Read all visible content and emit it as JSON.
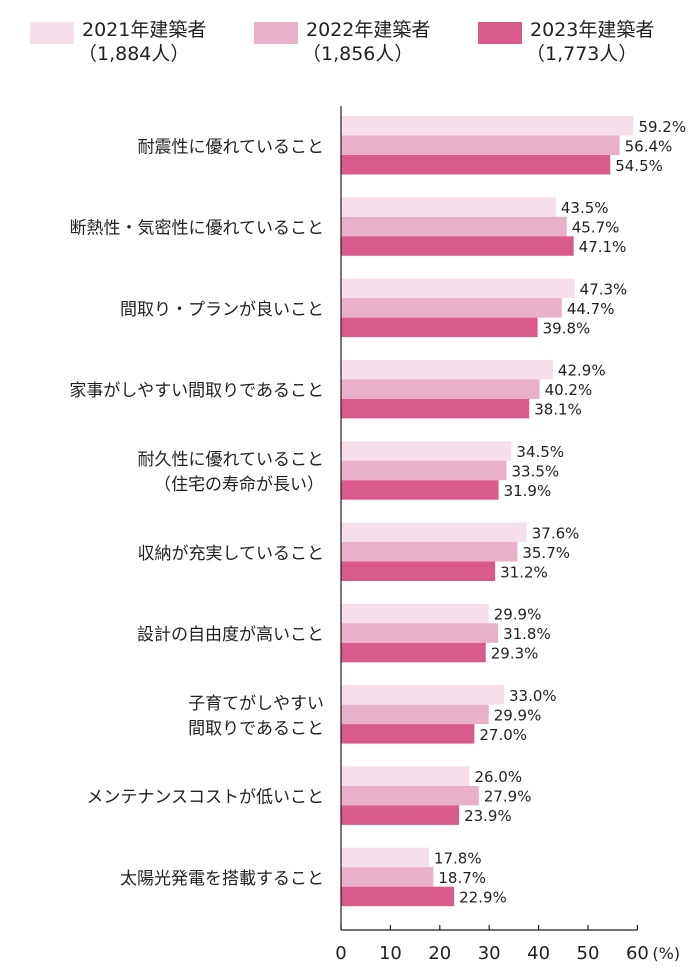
{
  "legend": [
    {
      "label": "2021年建築者",
      "count": "（1,884人）",
      "color": "#f6dfeb"
    },
    {
      "label": "2022年建築者",
      "count": "（1,856人）",
      "color": "#e8b1c9"
    },
    {
      "label": "2023年建築者",
      "count": "（1,773人）",
      "color": "#d95b8c"
    }
  ],
  "chart_data": {
    "type": "bar",
    "orientation": "horizontal",
    "categories": [
      [
        "耐震性に優れていること"
      ],
      [
        "断熱性・気密性に優れていること"
      ],
      [
        "間取り・プランが良いこと"
      ],
      [
        "家事がしやすい間取りであること"
      ],
      [
        "耐久性に優れていること",
        "（住宅の寿命が長い）"
      ],
      [
        "収納が充実していること"
      ],
      [
        "設計の自由度が高いこと"
      ],
      [
        "子育てがしやすい",
        "間取りであること"
      ],
      [
        "メンテナンスコストが低いこと"
      ],
      [
        "太陽光発電を搭載すること"
      ]
    ],
    "series": [
      {
        "name": "2021年建築者（1,884人）",
        "values": [
          59.2,
          43.5,
          47.3,
          42.9,
          34.5,
          37.6,
          29.9,
          33.0,
          26.0,
          17.8
        ]
      },
      {
        "name": "2022年建築者（1,856人）",
        "values": [
          56.4,
          45.7,
          44.7,
          40.2,
          33.5,
          35.7,
          31.8,
          29.9,
          27.9,
          18.7
        ]
      },
      {
        "name": "2023年建築者（1,773人）",
        "values": [
          54.5,
          47.1,
          39.8,
          38.1,
          31.9,
          31.2,
          29.3,
          27.0,
          23.9,
          22.9
        ]
      }
    ],
    "value_labels": [
      [
        "59.2%",
        "43.5%",
        "47.3%",
        "42.9%",
        "34.5%",
        "37.6%",
        "29.9%",
        "33.0%",
        "26.0%",
        "17.8%"
      ],
      [
        "56.4%",
        "45.7%",
        "44.7%",
        "40.2%",
        "33.5%",
        "35.7%",
        "31.8%",
        "29.9%",
        "27.9%",
        "18.7%"
      ],
      [
        "54.5%",
        "47.1%",
        "39.8%",
        "38.1%",
        "31.9%",
        "31.2%",
        "29.3%",
        "27.0%",
        "23.9%",
        "22.9%"
      ]
    ],
    "xticks": [
      "0",
      "10",
      "20",
      "30",
      "40",
      "50",
      "60"
    ],
    "xtick_values": [
      0,
      10,
      20,
      30,
      40,
      50,
      60
    ],
    "xunit": "(%)",
    "xlim": [
      0,
      60
    ],
    "grid": false,
    "legend_position": "top"
  }
}
